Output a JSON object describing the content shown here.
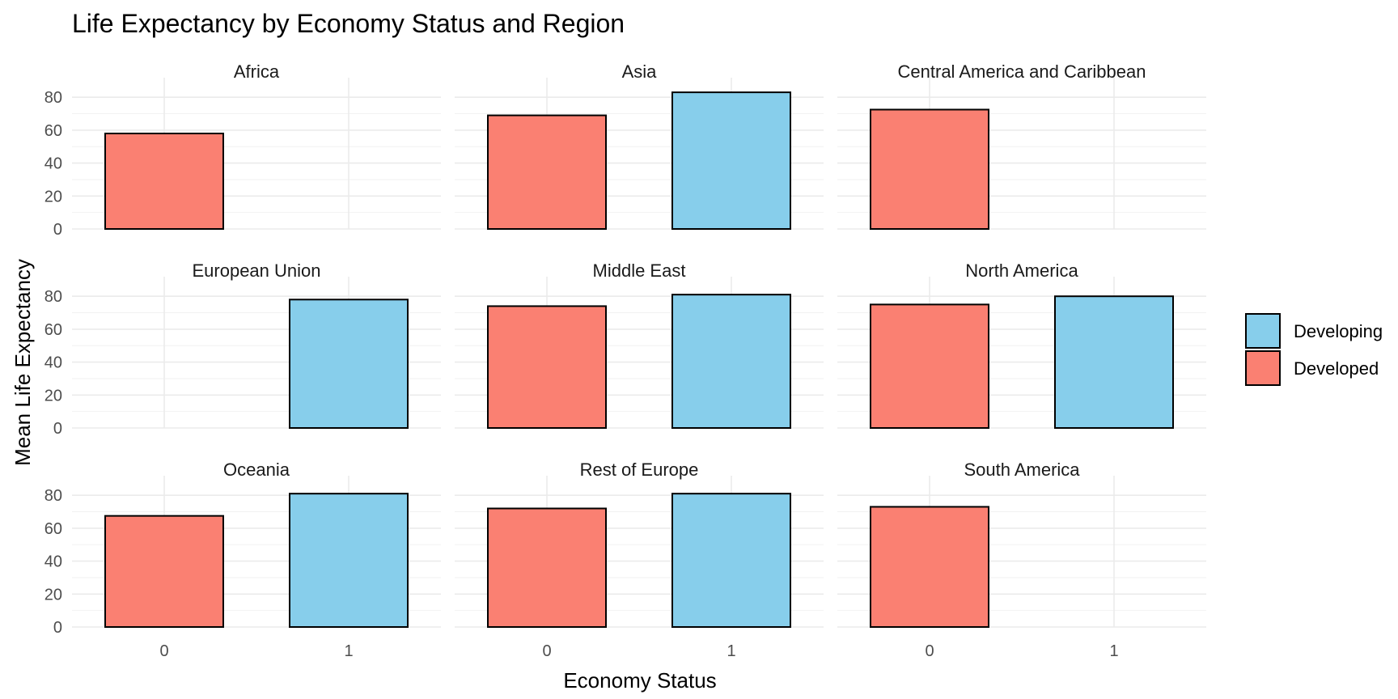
{
  "chart_data": {
    "type": "bar",
    "title": "Life Expectancy by Economy Status and Region",
    "xlabel": "Economy Status",
    "ylabel": "Mean Life Expectancy",
    "categories": [
      "0",
      "1"
    ],
    "y_ticks": [
      "0",
      "20",
      "40",
      "60",
      "80"
    ],
    "ylim": [
      0,
      86
    ],
    "grid": true,
    "legend_position": "right",
    "legend": [
      {
        "name": "Developing",
        "color": "#87CEEB"
      },
      {
        "name": "Developed",
        "color": "#FA8072"
      }
    ],
    "panels": [
      {
        "region": "Africa",
        "bars": [
          {
            "x": "0",
            "value": 58,
            "fill": "#FA8072"
          }
        ]
      },
      {
        "region": "Asia",
        "bars": [
          {
            "x": "0",
            "value": 69,
            "fill": "#FA8072"
          },
          {
            "x": "1",
            "value": 83,
            "fill": "#87CEEB"
          }
        ]
      },
      {
        "region": "Central America and Caribbean",
        "bars": [
          {
            "x": "0",
            "value": 72.5,
            "fill": "#FA8072"
          }
        ]
      },
      {
        "region": "European Union",
        "bars": [
          {
            "x": "1",
            "value": 78,
            "fill": "#87CEEB"
          }
        ]
      },
      {
        "region": "Middle East",
        "bars": [
          {
            "x": "0",
            "value": 74,
            "fill": "#FA8072"
          },
          {
            "x": "1",
            "value": 81,
            "fill": "#87CEEB"
          }
        ]
      },
      {
        "region": "North America",
        "bars": [
          {
            "x": "0",
            "value": 75,
            "fill": "#FA8072"
          },
          {
            "x": "1",
            "value": 80,
            "fill": "#87CEEB"
          }
        ]
      },
      {
        "region": "Oceania",
        "bars": [
          {
            "x": "0",
            "value": 67.5,
            "fill": "#FA8072"
          },
          {
            "x": "1",
            "value": 81,
            "fill": "#87CEEB"
          }
        ]
      },
      {
        "region": "Rest of Europe",
        "bars": [
          {
            "x": "0",
            "value": 72,
            "fill": "#FA8072"
          },
          {
            "x": "1",
            "value": 81,
            "fill": "#87CEEB"
          }
        ]
      },
      {
        "region": "South America",
        "bars": [
          {
            "x": "0",
            "value": 73,
            "fill": "#FA8072"
          }
        ]
      }
    ]
  }
}
